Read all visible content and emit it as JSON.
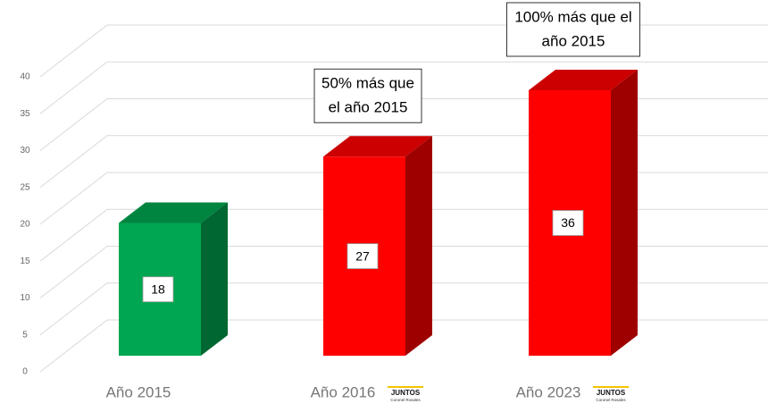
{
  "chart_data": {
    "type": "bar3d",
    "categories": [
      "Año 2015",
      "Año 2016",
      "Año 2023"
    ],
    "values": [
      18,
      27,
      36
    ],
    "colors": [
      "#00a651",
      "#ff0000",
      "#ff0000"
    ],
    "ylim": [
      0,
      40
    ],
    "yticks": [
      0,
      5,
      10,
      15,
      20,
      25,
      30,
      35,
      40
    ],
    "grid": true,
    "annotations": [
      null,
      [
        "50% más que",
        "el año 2015"
      ],
      [
        "100% más que el",
        "año 2015"
      ]
    ],
    "logos": [
      null,
      {
        "name": "JUNTOS",
        "tagline": "Coronel Rosales"
      },
      {
        "name": "JUNTOS",
        "tagline": "Coronel Rosales"
      }
    ]
  }
}
